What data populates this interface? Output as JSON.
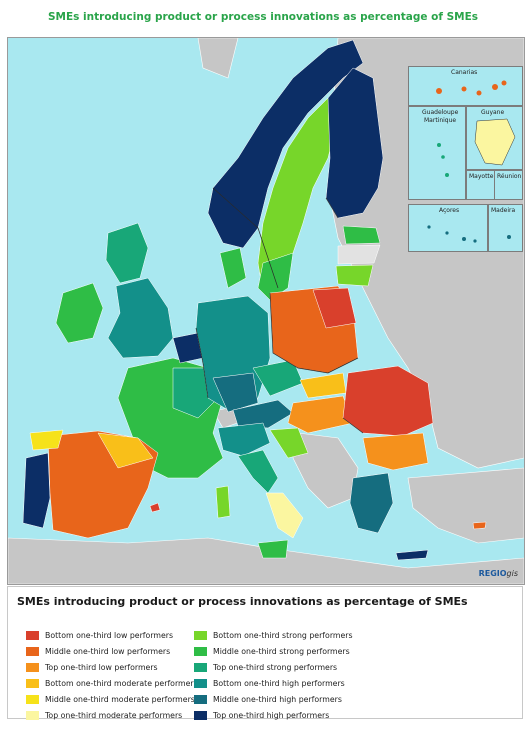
{
  "title": "SMEs introducing product or process innovations as percentage of SMEs",
  "brand": {
    "prefix": "REGIO",
    "suffix": "gis"
  },
  "insets": {
    "canarias": "Canarias",
    "guadeloupe": "Guadeloupe",
    "martinique": "Martinique",
    "guyane": "Guyane",
    "mayotte": "Mayotte",
    "reunion": "Réunion",
    "acores": "Açores",
    "madeira": "Madeira"
  },
  "legend": {
    "title": "SMEs introducing product or process innovations as percentage of SMEs",
    "left": [
      {
        "label": "Bottom one-third low performers",
        "color": "#d9402c"
      },
      {
        "label": "Middle one-third low performers",
        "color": "#e8651b"
      },
      {
        "label": "Top one-third low performers",
        "color": "#f5911c"
      },
      {
        "label": "Bottom one-third moderate performers",
        "color": "#f9bf19"
      },
      {
        "label": "Middle one-third moderate performers",
        "color": "#f6e21a"
      },
      {
        "label": "Top one-third moderate performers",
        "color": "#fbf6a0"
      }
    ],
    "right": [
      {
        "label": "Bottom one-third strong performers",
        "color": "#77d62a"
      },
      {
        "label": "Middle one-third strong performers",
        "color": "#2fbd46"
      },
      {
        "label": "Top one-third strong performers",
        "color": "#18a778"
      },
      {
        "label": "Bottom one-third high performers",
        "color": "#13908a"
      },
      {
        "label": "Middle one-third high performers",
        "color": "#156d7f"
      },
      {
        "label": "Top one-third high performers",
        "color": "#0c2e66"
      }
    ]
  },
  "colors": {
    "sea": "#a9e8f0",
    "non_eu": "#c6c6c6",
    "no_data": "#e2e2e2"
  }
}
